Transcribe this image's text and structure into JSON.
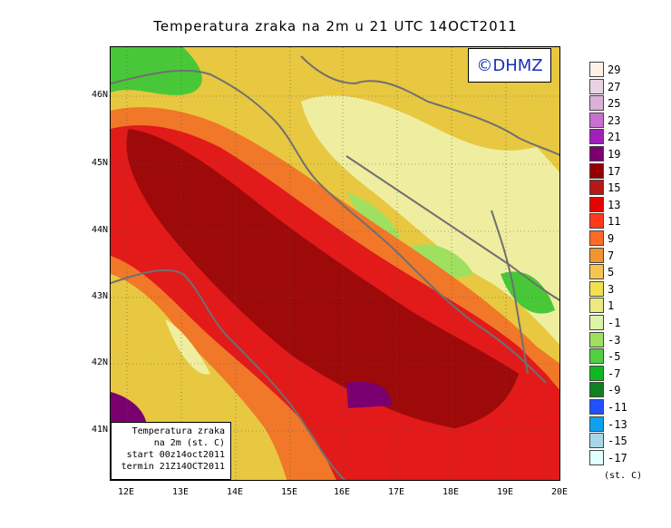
{
  "title": "Temperatura zraka na 2m u 21 UTC 14OCT2011",
  "copyright": "©DHMZ",
  "info_box": {
    "line1": "Temperatura zraka",
    "line2": "na 2m (st. C)",
    "line3": "start 00z14oct2011",
    "line4": "termin 21Z14OCT2011"
  },
  "lat_labels": [
    "46N",
    "45N",
    "44N",
    "43N",
    "42N",
    "41N"
  ],
  "lon_labels": [
    "12E",
    "13E",
    "14E",
    "15E",
    "16E",
    "17E",
    "18E",
    "19E",
    "20E"
  ],
  "legend": {
    "units": "(st. C)",
    "labels": [
      "29",
      "27",
      "25",
      "23",
      "21",
      "19",
      "17",
      "15",
      "13",
      "11",
      "9",
      "7",
      "5",
      "3",
      "1",
      "-1",
      "-3",
      "-5",
      "-7",
      "-9",
      "-11",
      "-13",
      "-15",
      "-17"
    ],
    "colors": [
      "#fff1e6",
      "#e8d3e3",
      "#dcb0d8",
      "#c86fd0",
      "#a020b8",
      "#7a0070",
      "#940000",
      "#b41818",
      "#e60000",
      "#ff3a1a",
      "#ff6a28",
      "#f09530",
      "#f5c550",
      "#f2e050",
      "#eaea80",
      "#ddf4a8",
      "#a0e060",
      "#50d040",
      "#10b820",
      "#108020",
      "#2050ff",
      "#10a0f0",
      "#a8d8e8",
      "#e0ffff"
    ]
  },
  "colors": {
    "sea": "#9e0a0a",
    "coast_warm": "#e21a1a",
    "orange": "#f07828",
    "yellow": "#e8c840",
    "pale": "#e8f0a0",
    "green": "#48c838",
    "border": "#707070"
  }
}
